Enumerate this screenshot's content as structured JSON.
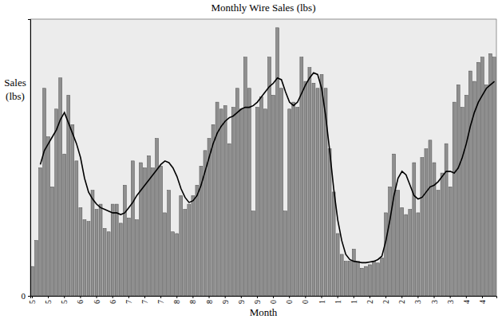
{
  "chart_data": {
    "type": "bar",
    "title": "Monthly Wire Sales (lbs)",
    "y_label": "Sales (lbs)",
    "x_label": "Month",
    "categories": [
      "5",
      null,
      null,
      null,
      "5",
      null,
      null,
      null,
      "5",
      null,
      null,
      null,
      "6",
      null,
      null,
      null,
      "6",
      null,
      null,
      null,
      "6",
      null,
      null,
      null,
      "7",
      null,
      null,
      null,
      "7",
      null,
      null,
      null,
      "7",
      null,
      null,
      null,
      "8",
      null,
      null,
      null,
      "8",
      null,
      null,
      null,
      "8",
      null,
      null,
      null,
      "9",
      null,
      null,
      null,
      "9",
      null,
      null,
      null,
      "9",
      null,
      null,
      null,
      "0",
      null,
      null,
      null,
      "0",
      null,
      null,
      null,
      "0",
      null,
      null,
      null,
      "1",
      null,
      null,
      null,
      "1",
      null,
      null,
      null,
      "1",
      null,
      null,
      null,
      "2",
      null,
      null,
      null,
      "2",
      null,
      null,
      null,
      "2",
      null,
      null,
      null,
      "3",
      null,
      null,
      null,
      "3",
      null,
      null,
      null,
      "3",
      null,
      null,
      null,
      "4",
      null,
      null,
      null,
      "4",
      null,
      null,
      null
    ],
    "series": [
      {
        "type": "bar",
        "color": "#8f8f8f",
        "values": [
          85,
          160,
          370,
          600,
          460,
          315,
          540,
          630,
          410,
          580,
          495,
          390,
          255,
          220,
          215,
          305,
          250,
          265,
          195,
          185,
          265,
          265,
          210,
          320,
          225,
          390,
          220,
          385,
          370,
          405,
          370,
          455,
          375,
          240,
          305,
          185,
          180,
          290,
          250,
          265,
          290,
          320,
          375,
          420,
          455,
          495,
          560,
          540,
          550,
          440,
          545,
          600,
          540,
          690,
          600,
          245,
          545,
          575,
          540,
          690,
          580,
          775,
          600,
          245,
          540,
          560,
          545,
          690,
          620,
          660,
          615,
          600,
          640,
          600,
          425,
          300,
          180,
          120,
          100,
          100,
          135,
          100,
          80,
          85,
          90,
          100,
          95,
          110,
          240,
          315,
          410,
          305,
          255,
          235,
          250,
          385,
          240,
          400,
          425,
          450,
          385,
          305,
          355,
          440,
          315,
          560,
          610,
          545,
          580,
          650,
          620,
          675,
          690,
          610,
          700,
          690
        ]
      },
      {
        "type": "line",
        "color": "#000000",
        "values": [
          null,
          null,
          380,
          420,
          440,
          460,
          480,
          510,
          530,
          500,
          470,
          440,
          400,
          340,
          300,
          280,
          265,
          255,
          250,
          245,
          240,
          240,
          235,
          240,
          255,
          270,
          290,
          305,
          320,
          335,
          350,
          365,
          380,
          390,
          385,
          370,
          345,
          310,
          285,
          270,
          275,
          290,
          320,
          360,
          400,
          440,
          470,
          490,
          505,
          515,
          520,
          530,
          540,
          545,
          545,
          550,
          560,
          575,
          590,
          605,
          615,
          630,
          625,
          590,
          560,
          550,
          560,
          585,
          610,
          630,
          645,
          640,
          600,
          520,
          420,
          310,
          220,
          160,
          120,
          105,
          100,
          98,
          96,
          96,
          98,
          100,
          105,
          115,
          160,
          220,
          290,
          340,
          360,
          350,
          320,
          290,
          280,
          285,
          300,
          315,
          320,
          330,
          345,
          360,
          360,
          355,
          370,
          400,
          440,
          490,
          530,
          560,
          580,
          600,
          610,
          620
        ]
      }
    ],
    "ylim": [
      0,
      800
    ],
    "yticks": [
      0
    ],
    "grid": false
  }
}
